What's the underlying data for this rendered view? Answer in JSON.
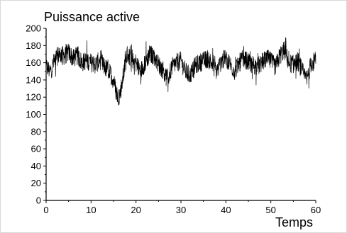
{
  "chart_data": {
    "type": "line",
    "title": "Puissance active",
    "xlabel": "Temps",
    "ylabel": "",
    "xlim": [
      0,
      60
    ],
    "ylim": [
      0,
      200
    ],
    "xticks": [
      "0",
      "10",
      "20",
      "30",
      "40",
      "50",
      "60"
    ],
    "yticks": [
      "0",
      "20",
      "40",
      "60",
      "80",
      "100",
      "120",
      "140",
      "160",
      "180",
      "200"
    ],
    "grid": false,
    "series": [
      {
        "color": "#000000",
        "x": [
          0,
          1,
          2,
          3,
          4,
          5,
          6,
          7,
          8,
          9,
          10,
          11,
          12,
          13,
          14,
          15,
          15.5,
          16,
          16.5,
          17,
          18,
          19,
          20,
          21,
          22,
          23,
          24,
          25,
          26,
          27,
          28,
          29,
          30,
          31,
          32,
          33,
          34,
          35,
          36,
          37,
          38,
          39,
          40,
          41,
          42,
          43,
          44,
          45,
          46,
          47,
          48,
          49,
          50,
          51,
          52,
          53,
          54,
          55,
          56,
          57,
          58,
          59,
          60
        ],
        "y": [
          155,
          150,
          165,
          170,
          168,
          172,
          165,
          168,
          160,
          163,
          160,
          158,
          163,
          155,
          150,
          140,
          128,
          120,
          125,
          140,
          170,
          165,
          160,
          150,
          160,
          170,
          168,
          158,
          152,
          140,
          155,
          160,
          162,
          150,
          145,
          155,
          160,
          162,
          165,
          158,
          150,
          162,
          165,
          158,
          150,
          160,
          165,
          160,
          158,
          155,
          160,
          165,
          162,
          155,
          168,
          175,
          160,
          158,
          162,
          150,
          140,
          160,
          162
        ]
      }
    ]
  }
}
